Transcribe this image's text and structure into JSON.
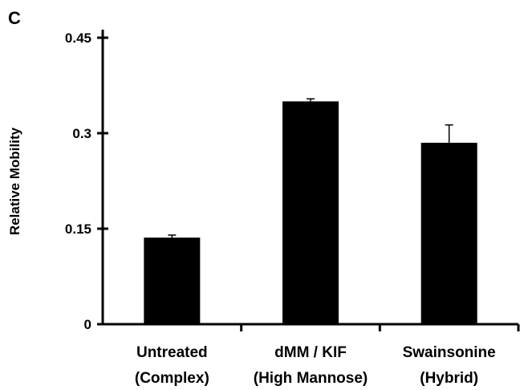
{
  "chart_data": {
    "type": "bar",
    "panel_label": "C",
    "title": "",
    "xlabel": "",
    "ylabel": "Relative Mobility",
    "ylim": [
      0,
      0.45
    ],
    "yticks": [
      0,
      0.15,
      0.3,
      0.45
    ],
    "ytick_labels": [
      "0",
      "0.15",
      "0.3",
      "0.45"
    ],
    "categories": [
      [
        "Untreated",
        "(Complex)"
      ],
      [
        "dMM / KIF",
        "(High Mannose)"
      ],
      [
        "Swainsonine",
        "(Hybrid)"
      ]
    ],
    "values": [
      0.136,
      0.35,
      0.285
    ],
    "errors": [
      0.004,
      0.004,
      0.028
    ],
    "bar_color": "#000000",
    "grid": false,
    "legend": "none"
  }
}
